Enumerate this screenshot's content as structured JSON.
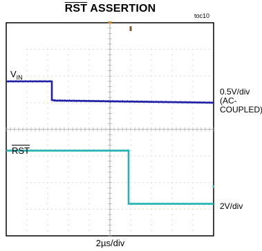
{
  "chart_data": {
    "type": "line",
    "title": "RST ASSERTION",
    "title_overline": "RST",
    "title_rest": " ASSERTION",
    "figure_tag": "toc10",
    "xlabel": "2µs/div",
    "grid": true,
    "x_divisions": 10,
    "y_divisions": 8,
    "xlim": [
      0,
      10
    ],
    "ylim": [
      0,
      8
    ],
    "series": [
      {
        "name": "VIN",
        "label_main": "V",
        "label_sub": "IN",
        "color": "#1f1fa8",
        "scale_lines": [
          "0.5V/div",
          "(AC-",
          "COUPLED)"
        ],
        "x": [
          0,
          2.2,
          2.2,
          2.35,
          10
        ],
        "y": [
          5.8,
          5.8,
          5.1,
          5.08,
          5.0
        ]
      },
      {
        "name": "RST",
        "label_overline": "RST",
        "color": "#27b3b3",
        "scale_lines": [
          "2V/div"
        ],
        "x": [
          0,
          5.9,
          5.9,
          10
        ],
        "y": [
          3.2,
          3.2,
          1.2,
          1.2
        ]
      }
    ]
  }
}
